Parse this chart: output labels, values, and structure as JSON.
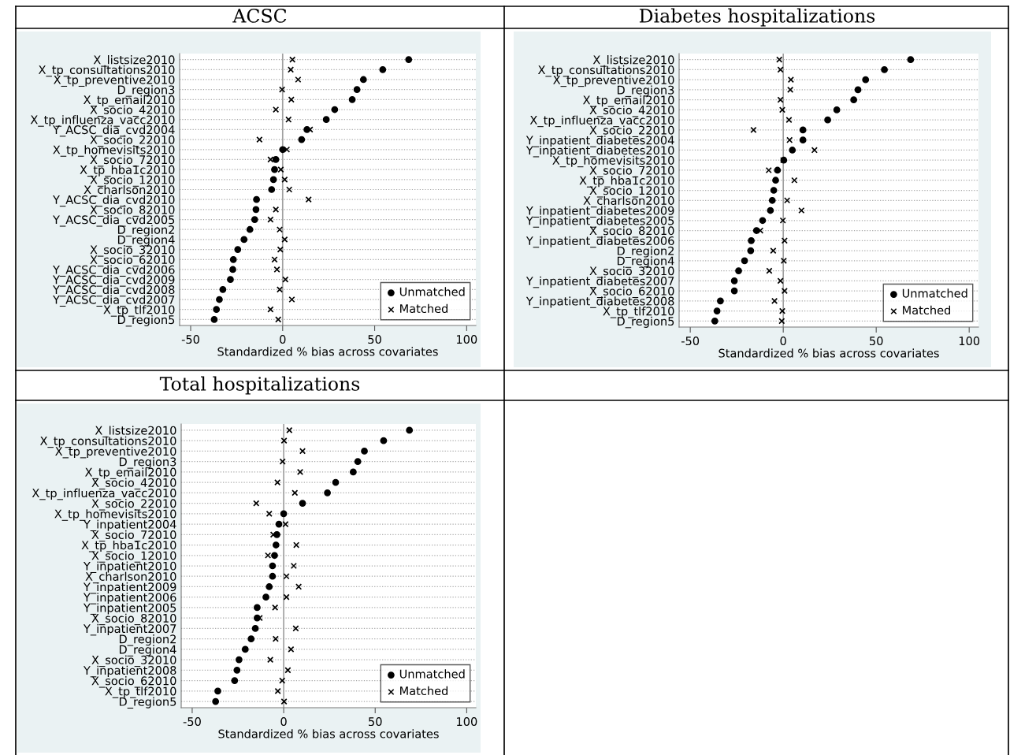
{
  "chart_data": [
    {
      "type": "scatter",
      "title": "ACSC",
      "xlabel": "Standardized % bias across covariates",
      "orientation": "horizontal",
      "categories": [
        "X_listsize2010",
        "X_tp_consultations2010",
        "X_tp_preventive2010",
        "D_region3",
        "X_tp_email2010",
        "X_socio_42010",
        "X_tp_influenza_vacc2010",
        "Y_ACSC_dia_cvd2004",
        "X_socio_22010",
        "X_tp_homevisits2010",
        "X_socio_72010",
        "X_tp_hba1c2010",
        "X_socio_12010",
        "X_charlson2010",
        "Y_ACSC_dia_cvd2010",
        "X_socio_82010",
        "Y_ACSC_dia_cvd2005",
        "D_region2",
        "D_region4",
        "X_socio_32010",
        "X_socio_62010",
        "Y_ACSC_dia_cvd2006",
        "Y_ACSC_dia_cvd2009",
        "Y_ACSC_dia_cvd2008",
        "Y_ACSC_dia_cvd2007",
        "X_tp_tlf2010",
        "D_region5"
      ],
      "series": [
        {
          "name": "Unmatched",
          "color": "#000000",
          "marker": "circle",
          "values": [
            68.5,
            54.4,
            43.9,
            40.4,
            37.8,
            28.3,
            23.7,
            13.2,
            10.3,
            0,
            -3.7,
            -4.4,
            -5.0,
            -6.0,
            -14.2,
            -14.5,
            -15.2,
            -17.8,
            -21.0,
            -24.4,
            -26.8,
            -27.1,
            -28.4,
            -32.5,
            -34.4,
            -36.0,
            -37.2
          ]
        },
        {
          "name": "Matched",
          "color": "#000000",
          "marker": "cross",
          "values": [
            5.3,
            4.4,
            8.4,
            -0.3,
            4.7,
            -3.7,
            3.2,
            14.9,
            -12.6,
            2.3,
            -6.6,
            -1.0,
            1.1,
            3.6,
            14.1,
            -3.7,
            -6.6,
            -1.6,
            1.1,
            -1.3,
            -4.4,
            -3.1,
            1.5,
            -1.6,
            5.0,
            -6.6,
            -2.4
          ]
        }
      ],
      "xlim": [
        -56,
        105
      ],
      "xticks": [
        -50,
        0,
        50,
        100
      ],
      "grid": "y",
      "legend": "bottom right",
      "ref_lines": [
        {
          "axis": "x",
          "value": 0,
          "color": "#a0a0a0"
        }
      ]
    },
    {
      "type": "scatter",
      "title": "Diabetes hospitalizations",
      "xlabel": "Standardized % bias across covariates",
      "orientation": "horizontal",
      "categories": [
        "X_listsize2010",
        "X_tp_consultations2010",
        "X_tp_preventive2010",
        "D_region3",
        "X_tp_email2010",
        "X_socio_42010",
        "X_tp_influenza_vacc2010",
        "X_socio_22010",
        "Y_inpatient_diabetes2004",
        "Y_inpatient_diabetes2010",
        "X_tp_homevisits2010",
        "X_socio_72010",
        "X_tp_hba1c2010",
        "X_socio_12010",
        "X_charlson2010",
        "Y_inpatient_diabetes2009",
        "Y_inpatient_diabetes2005",
        "X_socio_82010",
        "Y_inpatient_diabetes2006",
        "D_region2",
        "D_region4",
        "X_socio_32010",
        "Y_inpatient_diabetes2007",
        "X_socio_62010",
        "Y_inpatient_diabetes2008",
        "X_tp_tlf2010",
        "D_region5"
      ],
      "series": [
        {
          "name": "Unmatched",
          "color": "#000000",
          "marker": "circle",
          "values": [
            68.5,
            54.4,
            44.3,
            40.2,
            37.9,
            28.8,
            23.9,
            10.6,
            10.6,
            4.9,
            0.3,
            -3.1,
            -4.1,
            -5.1,
            -5.9,
            -6.9,
            -11.1,
            -14.4,
            -17.2,
            -17.5,
            -20.8,
            -24.0,
            -26.3,
            -26.3,
            -33.8,
            -35.6,
            -36.8
          ]
        },
        {
          "name": "Matched",
          "color": "#000000",
          "marker": "cross",
          "values": [
            -2.1,
            -1.5,
            4.1,
            3.8,
            -1.5,
            -0.5,
            3.1,
            -16.0,
            3.4,
            16.8,
            0,
            -7.8,
            6.0,
            null,
            2.1,
            9.8,
            -0.2,
            -12.3,
            0.7,
            -5.4,
            0.3,
            -7.5,
            -1.5,
            0.7,
            -4.7,
            -0.5,
            -0.8
          ]
        }
      ],
      "xlim": [
        -56,
        105
      ],
      "xticks": [
        -50,
        0,
        50,
        100
      ],
      "grid": "y",
      "legend": "bottom right",
      "ref_lines": [
        {
          "axis": "x",
          "value": 0,
          "color": "#a0a0a0"
        }
      ]
    },
    {
      "type": "scatter",
      "title": "Total hospitalizations",
      "xlabel": "Standardized % bias across covariates",
      "orientation": "horizontal",
      "categories": [
        "X_listsize2010",
        "X_tp_consultations2010",
        "X_tp_preventive2010",
        "D_region3",
        "X_tp_email2010",
        "X_socio_42010",
        "X_tp_influenza_vacc2010",
        "X_socio_22010",
        "X_tp_homevisits2010",
        "Y_inpatient2004",
        "X_socio_72010",
        "X_tp_hba1c2010",
        "X_socio_12010",
        "Y_inpatient2010",
        "X_charlson2010",
        "Y_inpatient2009",
        "Y_inpatient2006",
        "Y_inpatient2005",
        "X_socio_82010",
        "Y_inpatient2007",
        "D_region2",
        "D_region4",
        "X_socio_32010",
        "Y_inpatient2008",
        "X_socio_62010",
        "X_tp_tlf2010",
        "D_region5"
      ],
      "series": [
        {
          "name": "Unmatched",
          "color": "#000000",
          "marker": "circle",
          "values": [
            68.7,
            54.6,
            44.1,
            40.5,
            38.0,
            28.4,
            23.9,
            10.3,
            0,
            -2.6,
            -3.7,
            -4.2,
            -5.0,
            -6.1,
            -6.1,
            -7.9,
            -9.7,
            -14.5,
            -14.5,
            -15.5,
            -17.8,
            -21.0,
            -24.4,
            -25.5,
            -26.8,
            -36.0,
            -37.2
          ]
        },
        {
          "name": "Matched",
          "color": "#000000",
          "marker": "cross",
          "values": [
            3.1,
            0.2,
            10.3,
            -0.6,
            9.0,
            -3.4,
            6.1,
            -15.0,
            -7.9,
            1.0,
            -5.7,
            6.9,
            -8.6,
            5.5,
            1.5,
            8.2,
            1.5,
            -4.7,
            -13.1,
            6.6,
            -4.4,
            4.0,
            -7.3,
            2.3,
            -0.8,
            -3.2,
            0.2
          ]
        }
      ],
      "xlim": [
        -56,
        105
      ],
      "xticks": [
        -50,
        0,
        50,
        100
      ],
      "grid": "y",
      "legend": "bottom right",
      "ref_lines": [
        {
          "axis": "x",
          "value": 0,
          "color": "#a0a0a0"
        }
      ]
    }
  ]
}
